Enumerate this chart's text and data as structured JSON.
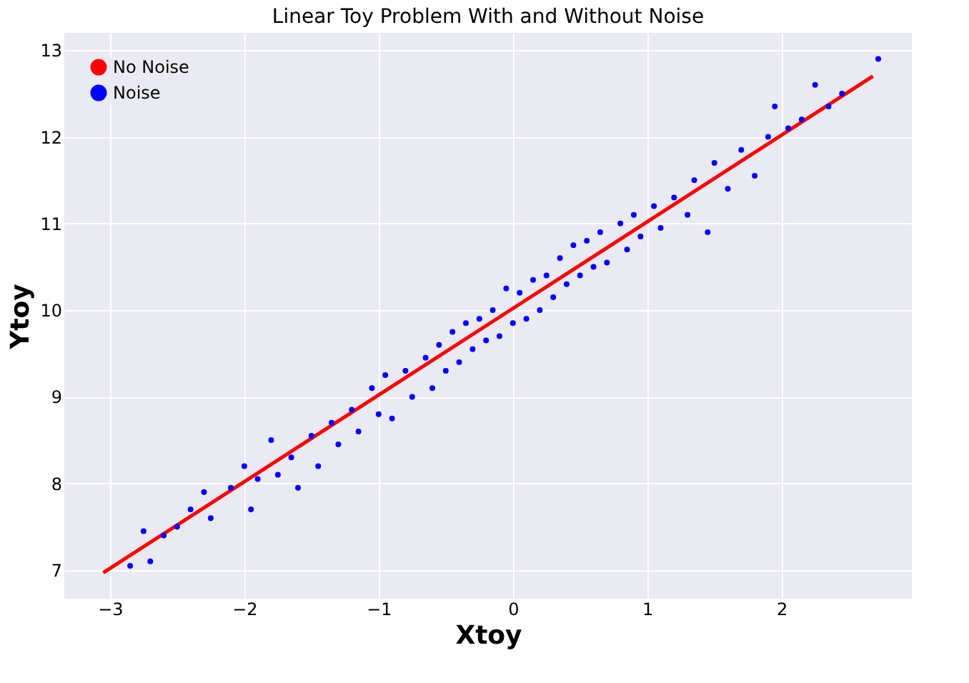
{
  "chart_data": {
    "type": "scatter",
    "title": "Linear Toy Problem With and Without Noise",
    "xlabel": "Xtoy",
    "ylabel": "Ytoy",
    "xlim": [
      -3.34,
      2.97
    ],
    "ylim": [
      6.67,
      13.2
    ],
    "xticks": [
      -3,
      -2,
      -1,
      0,
      1,
      2
    ],
    "yticks": [
      7,
      8,
      9,
      10,
      11,
      12,
      13
    ],
    "grid": true,
    "legend": "top left",
    "series": [
      {
        "name": "No Noise",
        "type": "line",
        "color": "#ff0000",
        "marker": "none",
        "x": [
          -3.05,
          2.68
        ],
        "values": [
          6.97,
          12.7
        ]
      },
      {
        "name": "Noise",
        "color": "#0000ff",
        "marker": "circle",
        "x": [
          -2.85,
          -2.75,
          -2.7,
          -2.6,
          -2.5,
          -2.4,
          -2.3,
          -2.25,
          -2.1,
          -2.0,
          -1.95,
          -1.9,
          -1.8,
          -1.75,
          -1.65,
          -1.6,
          -1.5,
          -1.45,
          -1.35,
          -1.3,
          -1.2,
          -1.15,
          -1.05,
          -1.0,
          -0.95,
          -0.9,
          -0.8,
          -0.75,
          -0.65,
          -0.6,
          -0.55,
          -0.5,
          -0.45,
          -0.4,
          -0.35,
          -0.3,
          -0.25,
          -0.2,
          -0.15,
          -0.1,
          -0.05,
          0.0,
          0.05,
          0.1,
          0.15,
          0.2,
          0.25,
          0.3,
          0.35,
          0.4,
          0.45,
          0.5,
          0.55,
          0.6,
          0.65,
          0.7,
          0.8,
          0.85,
          0.9,
          0.95,
          1.05,
          1.1,
          1.2,
          1.3,
          1.35,
          1.45,
          1.5,
          1.6,
          1.7,
          1.8,
          1.9,
          1.95,
          2.05,
          2.15,
          2.25,
          2.35,
          2.45,
          2.72
        ],
        "values": [
          7.05,
          7.45,
          7.1,
          7.4,
          7.5,
          7.7,
          7.9,
          7.6,
          7.95,
          8.2,
          7.7,
          8.05,
          8.5,
          8.1,
          8.3,
          7.95,
          8.55,
          8.2,
          8.7,
          8.45,
          8.85,
          8.6,
          9.1,
          8.8,
          9.25,
          8.75,
          9.3,
          9.0,
          9.45,
          9.1,
          9.6,
          9.3,
          9.75,
          9.4,
          9.85,
          9.55,
          9.9,
          9.65,
          10.0,
          9.7,
          10.25,
          9.85,
          10.2,
          9.9,
          10.35,
          10.0,
          10.4,
          10.15,
          10.6,
          10.3,
          10.75,
          10.4,
          10.8,
          10.5,
          10.9,
          10.55,
          11.0,
          10.7,
          11.1,
          10.85,
          11.2,
          10.95,
          11.3,
          11.1,
          11.5,
          10.9,
          11.7,
          11.4,
          11.85,
          11.55,
          12.0,
          12.35,
          12.1,
          12.2,
          12.6,
          12.35,
          12.5,
          12.9
        ]
      }
    ]
  }
}
